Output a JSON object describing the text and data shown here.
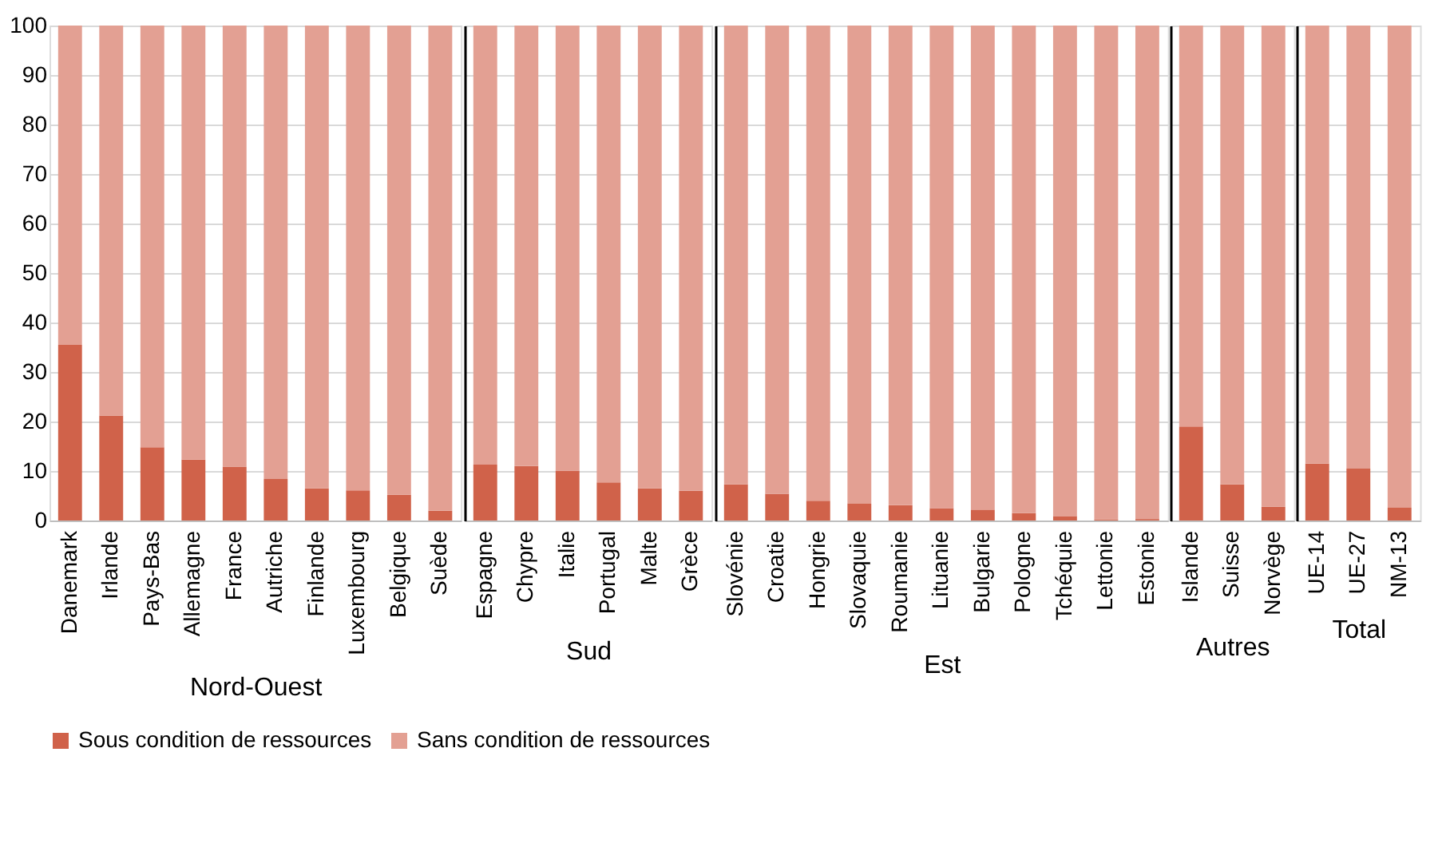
{
  "chart_data": [
    {
      "type": "bar",
      "stacked": true,
      "xlabel": "Nord-Ouest",
      "categories": [
        "Danemark",
        "Irlande",
        "Pays-Bas",
        "Allemagne",
        "France",
        "Autriche",
        "Finlande",
        "Luxembourg",
        "Belgique",
        "Suède"
      ],
      "series": [
        {
          "name": "Sous condition de ressources",
          "color": "#d0624a",
          "values": [
            35.5,
            21.2,
            14.8,
            12.3,
            10.9,
            8.4,
            6.5,
            6.1,
            5.2,
            2.0
          ]
        },
        {
          "name": "Sans condition de ressources",
          "color": "#e3a093",
          "values": [
            64.5,
            78.8,
            85.2,
            87.7,
            89.1,
            91.6,
            93.5,
            93.9,
            94.8,
            98.0
          ]
        }
      ],
      "ylim": [
        0,
        100
      ],
      "yticks": [
        0,
        10,
        20,
        30,
        40,
        50,
        60,
        70,
        80,
        90,
        100
      ],
      "grid": "y",
      "legend": "bottom"
    },
    {
      "type": "bar",
      "stacked": true,
      "xlabel": "Sud",
      "categories": [
        "Espagne",
        "Chypre",
        "Italie",
        "Portugal",
        "Malte",
        "Grèce"
      ],
      "series": [
        {
          "color": "#d0624a",
          "values": [
            11.3,
            11.0,
            10.1,
            7.7,
            6.5,
            6.0
          ]
        },
        {
          "color": "#e3a093",
          "values": [
            88.7,
            89.0,
            89.9,
            92.3,
            93.5,
            94.0
          ]
        }
      ],
      "ylim": [
        0,
        100
      ],
      "yticks": [
        0,
        10,
        20,
        30,
        40,
        50,
        60,
        70,
        80,
        90,
        100
      ],
      "grid": "y",
      "tick_labels": "x"
    },
    {
      "type": "bar",
      "stacked": true,
      "xlabel": "Est",
      "categories": [
        "Slovénie",
        "Croatie",
        "Hongrie",
        "Slovaquie",
        "Roumanie",
        "Lituanie",
        "Bulgarie",
        "Pologne",
        "Tchéquie",
        "Lettonie",
        "Estonie"
      ],
      "series": [
        {
          "color": "#d0624a",
          "values": [
            7.3,
            5.4,
            4.0,
            3.4,
            3.1,
            2.5,
            2.2,
            1.5,
            0.9,
            0.2,
            0.3
          ]
        },
        {
          "color": "#e3a093",
          "values": [
            92.7,
            94.6,
            96.0,
            96.6,
            96.9,
            97.5,
            97.8,
            98.5,
            99.1,
            99.8,
            99.7
          ]
        }
      ],
      "ylim": [
        0,
        100
      ],
      "yticks": [
        0,
        10,
        20,
        30,
        40,
        50,
        60,
        70,
        80,
        90,
        100
      ],
      "grid": "y",
      "tick_labels": "x"
    },
    {
      "type": "bar",
      "stacked": true,
      "xlabel": "Autres",
      "categories": [
        "Islande",
        "Suisse",
        "Norvège"
      ],
      "series": [
        {
          "color": "#d0624a",
          "values": [
            19.0,
            7.3,
            2.8
          ]
        },
        {
          "color": "#e3a093",
          "values": [
            81.0,
            92.7,
            97.2
          ]
        }
      ],
      "ylim": [
        0,
        100
      ],
      "yticks": [
        0,
        10,
        20,
        30,
        40,
        50,
        60,
        70,
        80,
        90,
        100
      ],
      "grid": "y",
      "tick_labels": "x"
    },
    {
      "type": "bar",
      "stacked": true,
      "xlabel": "Total",
      "categories": [
        "UE-14",
        "UE-27",
        "NM-13"
      ],
      "series": [
        {
          "color": "#d0624a",
          "values": [
            11.5,
            10.5,
            2.6
          ]
        },
        {
          "color": "#e3a093",
          "values": [
            88.5,
            89.5,
            97.4
          ]
        }
      ],
      "ylim": [
        0,
        100
      ],
      "yticks": [
        0,
        10,
        20,
        30,
        40,
        50,
        60,
        70,
        80,
        90,
        100
      ],
      "grid": "y",
      "tick_labels": "x"
    }
  ]
}
